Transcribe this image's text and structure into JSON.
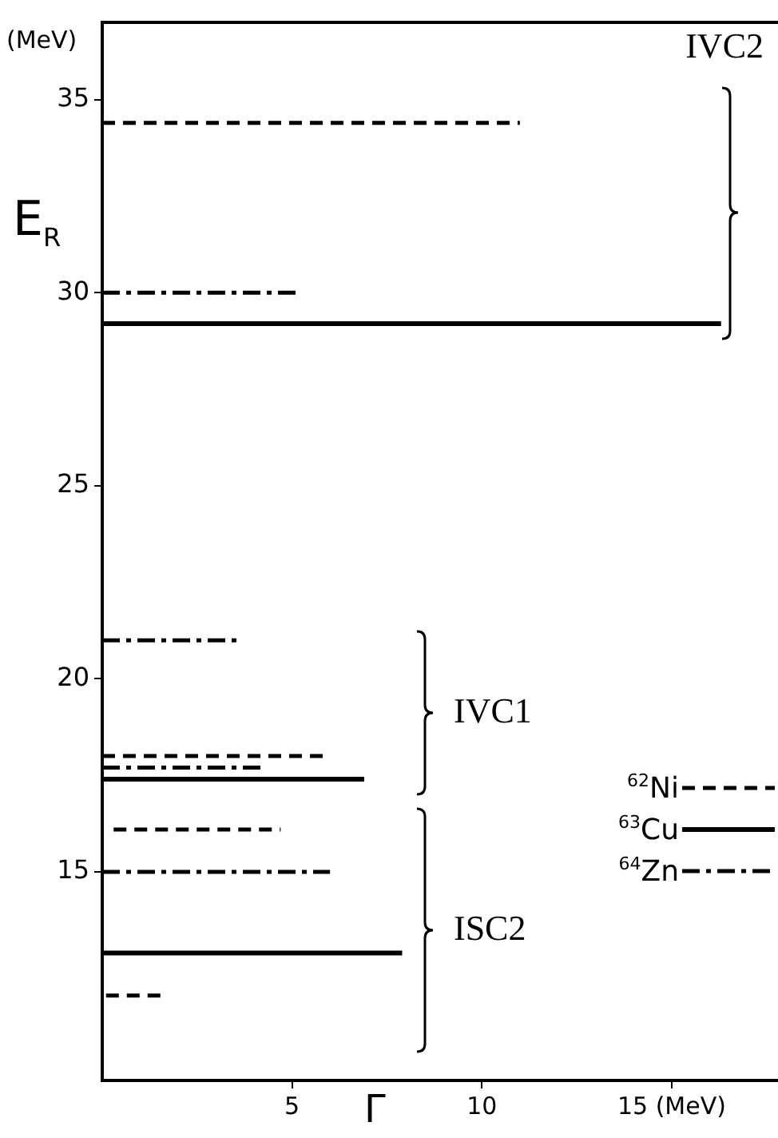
{
  "chart_data": {
    "type": "line",
    "xlabel": "Γ",
    "ylabel": "E$_{R}$",
    "annotations": [
      "(MeV)",
      "IVC2",
      "IVC1",
      "ISC2"
    ],
    "series": [
      {
        "name": "$^{62}$Ni",
        "color": "#000000",
        "line_style": "dashed",
        "x": [
          0,
          11.0,
          null,
          0,
          6.0,
          null,
          0.3,
          4.7,
          null,
          0.1,
          1.6
        ],
        "values": [
          34.4,
          34.4,
          null,
          18.0,
          18.0,
          null,
          16.1,
          16.1,
          null,
          11.8,
          11.8
        ]
      },
      {
        "name": "$^{63}$Cu",
        "color": "#000000",
        "line_style": "solid",
        "x": [
          0,
          16.3,
          null,
          0,
          6.9,
          null,
          0,
          7.9
        ],
        "values": [
          29.2,
          29.2,
          null,
          17.4,
          17.4,
          null,
          12.9,
          12.9
        ]
      },
      {
        "name": "$^{64}$Zn",
        "color": "#000000",
        "line_style": "dashdot",
        "x": [
          0,
          5.1,
          null,
          0,
          3.6,
          null,
          0,
          4.3,
          null,
          0,
          6.0
        ],
        "values": [
          30.0,
          30.0,
          null,
          21.0,
          21.0,
          null,
          17.7,
          17.7,
          null,
          15.0,
          15.0
        ]
      }
    ],
    "xlim": [
      0,
      17.8
    ],
    "xticks": [
      5,
      10,
      {
        "value": 15,
        "label": "15 (MeV)"
      }
    ],
    "ylim": [
      9.6,
      37.0
    ],
    "yticks": [
      15,
      20,
      25,
      30,
      35
    ],
    "grid": false,
    "legend": "right",
    "marker": "none"
  }
}
